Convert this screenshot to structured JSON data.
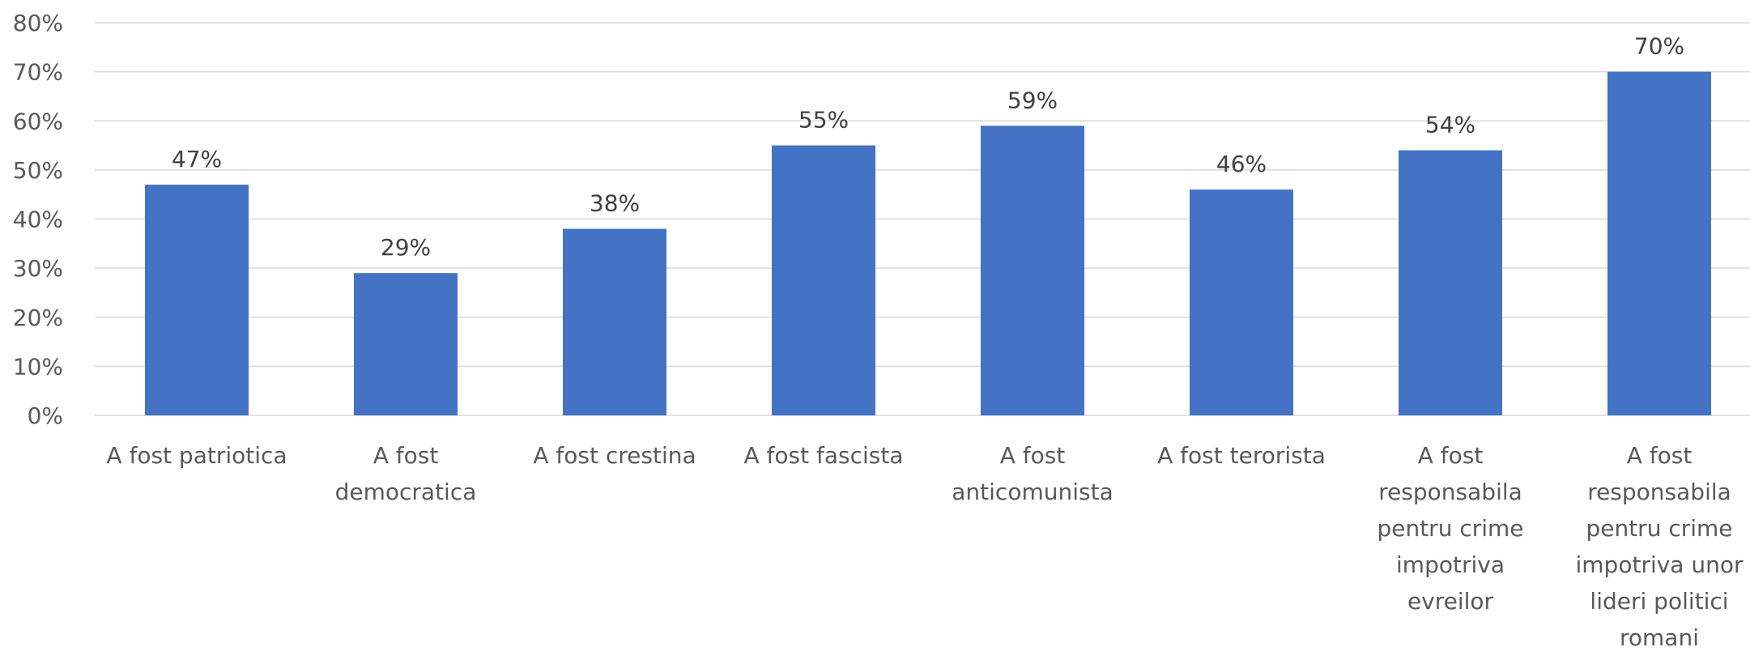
{
  "chart_data": {
    "type": "bar",
    "title": "",
    "xlabel": "",
    "ylabel": "",
    "categories": [
      "A fost patriotica",
      "A fost democratica",
      "A fost crestina",
      "A fost fascista",
      "A fost anticomunista",
      "A fost terorista",
      "A fost responsabila pentru crime impotriva evreilor",
      "A fost responsabila pentru crime impotriva unor lideri politici romani"
    ],
    "category_lines": [
      [
        "A fost patriotica"
      ],
      [
        "A fost",
        "democratica"
      ],
      [
        "A fost crestina"
      ],
      [
        "A fost fascista"
      ],
      [
        "A fost",
        "anticomunista"
      ],
      [
        "A fost terorista"
      ],
      [
        "A fost",
        "responsabila",
        "pentru crime",
        "impotriva",
        "evreilor"
      ],
      [
        "A fost",
        "responsabila",
        "pentru crime",
        "impotriva unor",
        "lideri politici",
        "romani"
      ]
    ],
    "values": [
      0.47,
      0.29,
      0.38,
      0.55,
      0.59,
      0.46,
      0.54,
      0.7
    ],
    "data_labels": [
      "47%",
      "29%",
      "38%",
      "55%",
      "59%",
      "46%",
      "54%",
      "70%"
    ],
    "ylim": [
      0,
      0.8
    ],
    "y_ticks": [
      0,
      0.1,
      0.2,
      0.3,
      0.4,
      0.5,
      0.6,
      0.7,
      0.8
    ],
    "y_tick_labels": [
      "0%",
      "10%",
      "20%",
      "30%",
      "40%",
      "50%",
      "60%",
      "70%",
      "80%"
    ],
    "grid": true,
    "legend": "none",
    "bar_color": "#4472c4"
  }
}
